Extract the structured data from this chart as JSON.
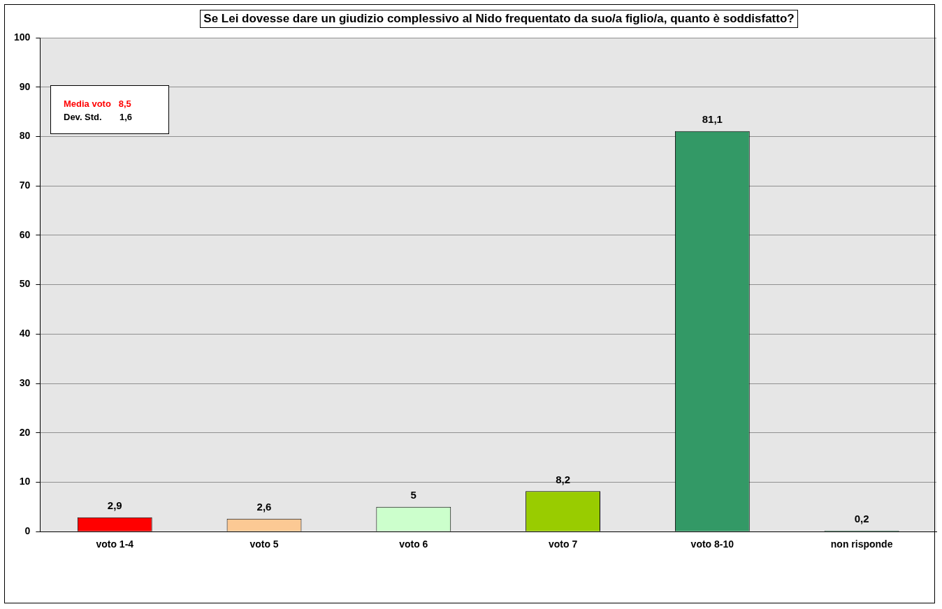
{
  "chart_data": {
    "type": "bar",
    "title": "Se Lei dovesse dare un giudizio complessivo al Nido frequentato da suo/a figlio/a, quanto è soddisfatto?",
    "categories": [
      "voto 1-4",
      "voto 5",
      "voto 6",
      "voto 7",
      "voto 8-10",
      "non risponde"
    ],
    "values": [
      2.9,
      2.6,
      5,
      8.2,
      81.1,
      0.2
    ],
    "colors": [
      "#ff0000",
      "#fcc994",
      "#ccffcc",
      "#99cc00",
      "#339966",
      "#339966"
    ],
    "value_labels": [
      "2,9",
      "2,6",
      "5",
      "8,2",
      "81,1",
      "0,2"
    ],
    "ylim": [
      0,
      100
    ],
    "yticks": [
      0,
      10,
      20,
      30,
      40,
      50,
      60,
      70,
      80,
      90,
      100
    ],
    "grid": "y",
    "annotations": [
      "Media voto   8,5",
      "Dev. Std.       1,6"
    ]
  }
}
